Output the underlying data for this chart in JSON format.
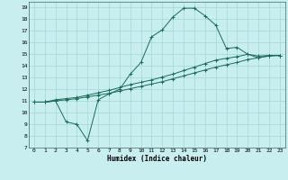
{
  "xlabel": "Humidex (Indice chaleur)",
  "bg_color": "#c8eef0",
  "line_color": "#1a6b5a",
  "grid_color": "#a0d8d8",
  "xlim": [
    -0.5,
    23.5
  ],
  "ylim": [
    7,
    19.5
  ],
  "yticks": [
    7,
    8,
    9,
    10,
    11,
    12,
    13,
    14,
    15,
    16,
    17,
    18,
    19
  ],
  "xticks": [
    0,
    1,
    2,
    3,
    4,
    5,
    6,
    7,
    8,
    9,
    10,
    11,
    12,
    13,
    14,
    15,
    16,
    17,
    18,
    19,
    20,
    21,
    22,
    23
  ],
  "line1_x": [
    0,
    1,
    2,
    3,
    4,
    5,
    6,
    7,
    8,
    9,
    10,
    11,
    12,
    13,
    14,
    15,
    16,
    17,
    18,
    19,
    20,
    21,
    22,
    23
  ],
  "line1_y": [
    10.9,
    10.9,
    11.0,
    9.2,
    9.0,
    7.6,
    11.1,
    11.6,
    12.0,
    13.3,
    14.3,
    16.5,
    17.1,
    18.2,
    18.95,
    18.95,
    18.3,
    17.5,
    15.5,
    15.6,
    15.0,
    14.7,
    14.9,
    14.9
  ],
  "line2_x": [
    0,
    1,
    2,
    3,
    4,
    5,
    6,
    7,
    8,
    9,
    10,
    11,
    12,
    13,
    14,
    15,
    16,
    17,
    18,
    19,
    20,
    21,
    22,
    23
  ],
  "line2_y": [
    10.9,
    10.9,
    11.1,
    11.2,
    11.3,
    11.5,
    11.7,
    11.9,
    12.15,
    12.4,
    12.6,
    12.8,
    13.05,
    13.3,
    13.6,
    13.9,
    14.2,
    14.5,
    14.65,
    14.8,
    15.0,
    14.85,
    14.9,
    14.9
  ],
  "line3_x": [
    0,
    1,
    2,
    3,
    4,
    5,
    6,
    7,
    8,
    9,
    10,
    11,
    12,
    13,
    14,
    15,
    16,
    17,
    18,
    19,
    20,
    21,
    22,
    23
  ],
  "line3_y": [
    10.9,
    10.9,
    11.0,
    11.1,
    11.2,
    11.35,
    11.5,
    11.65,
    11.85,
    12.05,
    12.25,
    12.45,
    12.65,
    12.9,
    13.15,
    13.4,
    13.65,
    13.9,
    14.1,
    14.3,
    14.55,
    14.7,
    14.85,
    14.9
  ]
}
